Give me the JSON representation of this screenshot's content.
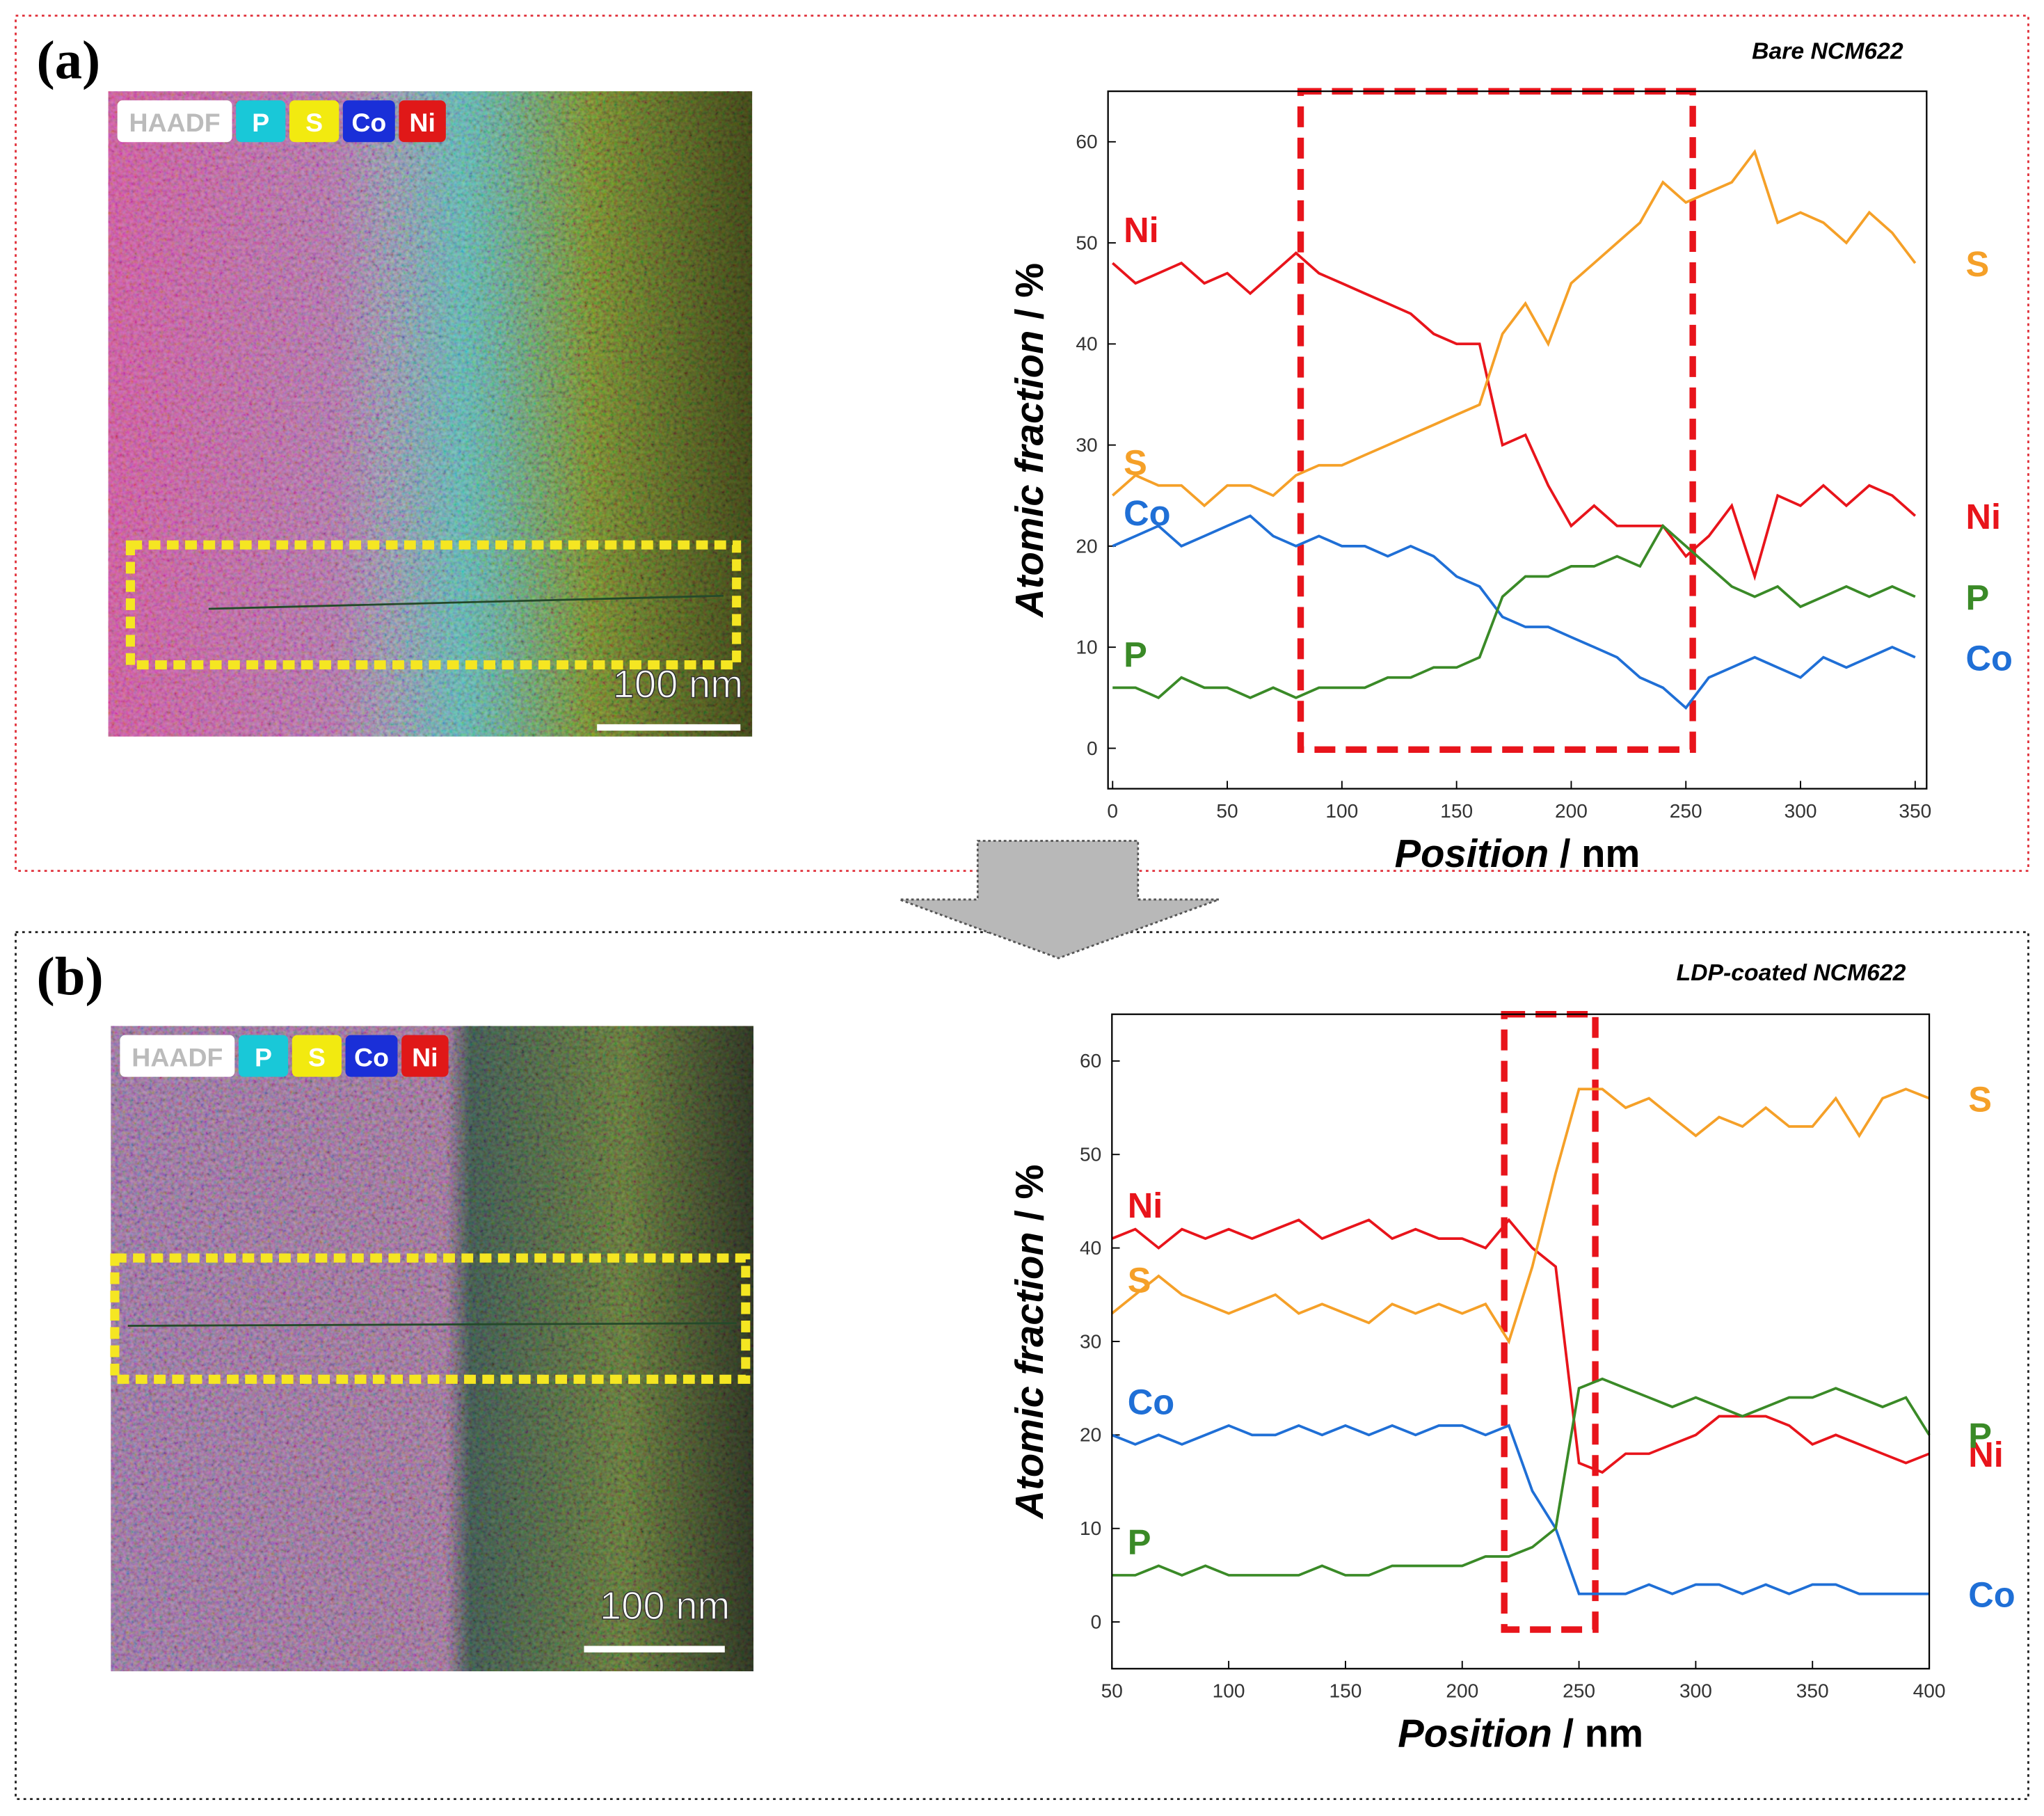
{
  "panels": [
    {
      "label": "(a)",
      "map_channels": [
        "HAADF",
        "P",
        "S",
        "Co",
        "Ni"
      ],
      "scale_bar": "100 nm"
    },
    {
      "label": "(b)",
      "map_channels": [
        "HAADF",
        "P",
        "S",
        "Co",
        "Ni"
      ],
      "scale_bar": "100 nm"
    }
  ],
  "chart_data": [
    {
      "type": "line",
      "title": "Bare NCM622",
      "xlabel_name": "Position",
      "xlabel_unit": "/ nm",
      "ylabel_name": "Atomic fraction",
      "ylabel_unit": "/ %",
      "xlim": [
        -2,
        355
      ],
      "ylim": [
        -4,
        65
      ],
      "xticks": [
        0,
        50,
        100,
        150,
        200,
        250,
        300,
        350
      ],
      "yticks": [
        0,
        10,
        20,
        30,
        40,
        50,
        60
      ],
      "highlight_x": [
        82,
        253
      ],
      "x": [
        0,
        10,
        20,
        30,
        40,
        50,
        60,
        70,
        80,
        90,
        100,
        110,
        120,
        130,
        140,
        150,
        160,
        170,
        180,
        190,
        200,
        210,
        220,
        230,
        240,
        250,
        260,
        270,
        280,
        290,
        300,
        310,
        320,
        330,
        340,
        350
      ],
      "series": [
        {
          "name": "Ni",
          "color": "#e8141b",
          "values": [
            48,
            46,
            47,
            48,
            46,
            47,
            45,
            47,
            49,
            47,
            46,
            45,
            44,
            43,
            41,
            40,
            40,
            30,
            31,
            26,
            22,
            24,
            22,
            22,
            22,
            19,
            21,
            24,
            17,
            25,
            24,
            26,
            24,
            26,
            25,
            23
          ]
        },
        {
          "name": "S",
          "color": "#f5a028",
          "values": [
            25,
            27,
            26,
            26,
            24,
            26,
            26,
            25,
            27,
            28,
            28,
            29,
            30,
            31,
            32,
            33,
            34,
            41,
            44,
            40,
            46,
            48,
            50,
            52,
            56,
            54,
            55,
            56,
            59,
            52,
            53,
            52,
            50,
            53,
            51,
            48
          ]
        },
        {
          "name": "Co",
          "color": "#1f6fd6",
          "values": [
            20,
            21,
            22,
            20,
            21,
            22,
            23,
            21,
            20,
            21,
            20,
            20,
            19,
            20,
            19,
            17,
            16,
            13,
            12,
            12,
            11,
            10,
            9,
            7,
            6,
            4,
            7,
            8,
            9,
            8,
            7,
            9,
            8,
            9,
            10,
            9
          ]
        },
        {
          "name": "P",
          "color": "#3a8a27",
          "values": [
            6,
            6,
            5,
            7,
            6,
            6,
            5,
            6,
            5,
            6,
            6,
            6,
            7,
            7,
            8,
            8,
            9,
            15,
            17,
            17,
            18,
            18,
            19,
            18,
            22,
            20,
            18,
            16,
            15,
            16,
            14,
            15,
            16,
            15,
            16,
            15
          ]
        }
      ]
    },
    {
      "type": "line",
      "title": "LDP-coated NCM622",
      "xlabel_name": "Position",
      "xlabel_unit": "/ nm",
      "ylabel_name": "Atomic fraction",
      "ylabel_unit": "/ %",
      "xlim": [
        50,
        400
      ],
      "ylim": [
        -5,
        65
      ],
      "xticks": [
        50,
        100,
        150,
        200,
        250,
        300,
        350,
        400
      ],
      "yticks": [
        0,
        10,
        20,
        30,
        40,
        50,
        60
      ],
      "highlight_x": [
        218,
        257
      ],
      "x": [
        50,
        60,
        70,
        80,
        90,
        100,
        110,
        120,
        130,
        140,
        150,
        160,
        170,
        180,
        190,
        200,
        210,
        220,
        230,
        240,
        250,
        260,
        270,
        280,
        290,
        300,
        310,
        320,
        330,
        340,
        350,
        360,
        370,
        380,
        390,
        400
      ],
      "series": [
        {
          "name": "Ni",
          "color": "#e8141b",
          "values": [
            41,
            42,
            40,
            42,
            41,
            42,
            41,
            42,
            43,
            41,
            42,
            43,
            41,
            42,
            41,
            41,
            40,
            43,
            40,
            38,
            17,
            16,
            18,
            18,
            19,
            20,
            22,
            22,
            22,
            21,
            19,
            20,
            19,
            18,
            17,
            18
          ]
        },
        {
          "name": "S",
          "color": "#f5a028",
          "values": [
            33,
            35,
            37,
            35,
            34,
            33,
            34,
            35,
            33,
            34,
            33,
            32,
            34,
            33,
            34,
            33,
            34,
            30,
            38,
            48,
            57,
            57,
            55,
            56,
            54,
            52,
            54,
            53,
            55,
            53,
            53,
            56,
            52,
            56,
            57,
            56
          ]
        },
        {
          "name": "Co",
          "color": "#1f6fd6",
          "values": [
            20,
            19,
            20,
            19,
            20,
            21,
            20,
            20,
            21,
            20,
            21,
            20,
            21,
            20,
            21,
            21,
            20,
            21,
            14,
            10,
            3,
            3,
            3,
            4,
            3,
            4,
            4,
            3,
            4,
            3,
            4,
            4,
            3,
            3,
            3,
            3
          ]
        },
        {
          "name": "P",
          "color": "#3a8a27",
          "values": [
            5,
            5,
            6,
            5,
            6,
            5,
            5,
            5,
            5,
            6,
            5,
            5,
            6,
            6,
            6,
            6,
            7,
            7,
            8,
            10,
            25,
            26,
            25,
            24,
            23,
            24,
            23,
            22,
            23,
            24,
            24,
            25,
            24,
            23,
            24,
            20
          ]
        }
      ]
    }
  ]
}
